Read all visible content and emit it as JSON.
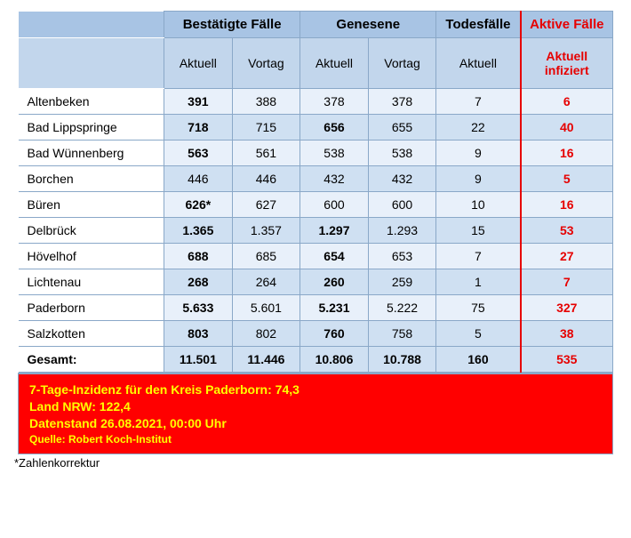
{
  "headers": {
    "bestaetigte": "Bestätigte Fälle",
    "genesene": "Genesene",
    "todesfaelle": "Todesfälle",
    "aktive": "Aktive Fälle",
    "aktuell": "Aktuell",
    "vortag": "Vortag",
    "aktive_sub": "Aktuell infiziert"
  },
  "rows": [
    {
      "name": "Altenbeken",
      "b_akt": "391",
      "b_vor": "388",
      "g_akt": "378",
      "g_vor": "378",
      "tod": "7",
      "aktive": "6",
      "b_akt_bold": true,
      "g_akt_bold": false,
      "cursor_vor": true
    },
    {
      "name": "Bad Lippspringe",
      "b_akt": "718",
      "b_vor": "715",
      "g_akt": "656",
      "g_vor": "655",
      "tod": "22",
      "aktive": "40",
      "b_akt_bold": true,
      "g_akt_bold": true
    },
    {
      "name": "Bad Wünnenberg",
      "b_akt": "563",
      "b_vor": "561",
      "g_akt": "538",
      "g_vor": "538",
      "tod": "9",
      "aktive": "16",
      "b_akt_bold": true,
      "g_akt_bold": false
    },
    {
      "name": "Borchen",
      "b_akt": "446",
      "b_vor": "446",
      "g_akt": "432",
      "g_vor": "432",
      "tod": "9",
      "aktive": "5",
      "b_akt_bold": false,
      "g_akt_bold": false
    },
    {
      "name": "Büren",
      "b_akt": "626*",
      "b_vor": "627",
      "g_akt": "600",
      "g_vor": "600",
      "tod": "10",
      "aktive": "16",
      "b_akt_bold": true,
      "g_akt_bold": false
    },
    {
      "name": "Delbrück",
      "b_akt": "1.365",
      "b_vor": "1.357",
      "g_akt": "1.297",
      "g_vor": "1.293",
      "tod": "15",
      "aktive": "53",
      "b_akt_bold": true,
      "g_akt_bold": true
    },
    {
      "name": "Hövelhof",
      "b_akt": "688",
      "b_vor": "685",
      "g_akt": "654",
      "g_vor": "653",
      "tod": "7",
      "aktive": "27",
      "b_akt_bold": true,
      "g_akt_bold": true
    },
    {
      "name": "Lichtenau",
      "b_akt": "268",
      "b_vor": "264",
      "g_akt": "260",
      "g_vor": "259",
      "tod": "1",
      "aktive": "7",
      "b_akt_bold": true,
      "g_akt_bold": true
    },
    {
      "name": "Paderborn",
      "b_akt": "5.633",
      "b_vor": "5.601",
      "g_akt": "5.231",
      "g_vor": "5.222",
      "tod": "75",
      "aktive": "327",
      "b_akt_bold": true,
      "g_akt_bold": true
    },
    {
      "name": "Salzkotten",
      "b_akt": "803",
      "b_vor": "802",
      "g_akt": "760",
      "g_vor": "758",
      "tod": "5",
      "aktive": "38",
      "b_akt_bold": true,
      "g_akt_bold": true
    }
  ],
  "total": {
    "name": "Gesamt:",
    "b_akt": "11.501",
    "b_vor": "11.446",
    "g_akt": "10.806",
    "g_vor": "10.788",
    "tod": "160",
    "aktive": "535"
  },
  "footer": {
    "line1": "7-Tage-Inzidenz für den Kreis Paderborn: 74,3",
    "line2": "Land NRW: 122,4",
    "line3": "Datenstand 26.08.2021, 00:00 Uhr",
    "source": "Quelle: Robert Koch-Institut"
  },
  "footnote": "*Zahlenkorrektur",
  "colors": {
    "header_dark": "#a8c4e4",
    "header_light": "#c2d6ec",
    "row_light": "#e8f0fa",
    "row_dark": "#cfe0f2",
    "border": "#8aa8c8",
    "accent_red": "#e60000",
    "footer_bg": "#ff0000",
    "footer_text": "#ffff00"
  }
}
